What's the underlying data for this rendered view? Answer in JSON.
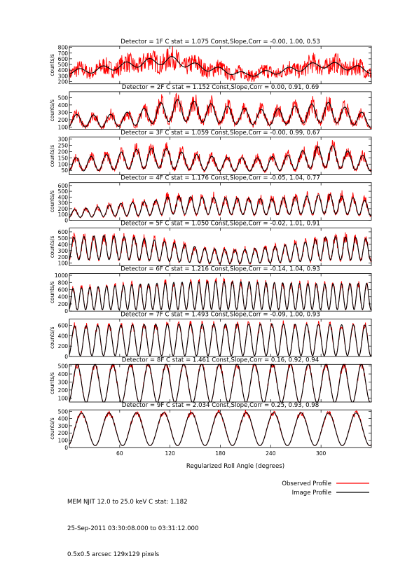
{
  "chart_data": {
    "type": "line",
    "xlabel": "Regularized Roll Angle (degrees)",
    "xlim": [
      0,
      360
    ],
    "x_ticks": [
      60,
      120,
      180,
      240,
      300
    ],
    "ylabel": "counts/s",
    "series_names": [
      "Observed Profile",
      "Image Profile"
    ],
    "series_colors": [
      "#ff0000",
      "#000000"
    ],
    "panels": [
      {
        "title": "Detector = 1F   C stat = 1.075   Const,Slope,Corr = -0.00, 1.00, 0.53",
        "ylim": [
          160,
          820
        ],
        "y_ticks": [
          200,
          300,
          400,
          500,
          600,
          700,
          800
        ],
        "baseline": [
          [
            0,
            370
          ],
          [
            30,
            400
          ],
          [
            60,
            470
          ],
          [
            90,
            530
          ],
          [
            120,
            580
          ],
          [
            150,
            470
          ],
          [
            180,
            400
          ],
          [
            210,
            320
          ],
          [
            240,
            360
          ],
          [
            270,
            420
          ],
          [
            300,
            500
          ],
          [
            330,
            460
          ],
          [
            360,
            390
          ]
        ],
        "cycles": 13,
        "model_amplitude": 0.12,
        "noise": 0.35
      },
      {
        "title": "Detector = 2F   C stat = 1.152   Const,Slope,Corr = 0.00, 0.91, 0.69",
        "ylim": [
          70,
          580
        ],
        "y_ticks": [
          100,
          200,
          300,
          400,
          500
        ],
        "baseline": [
          [
            0,
            190
          ],
          [
            40,
            180
          ],
          [
            80,
            220
          ],
          [
            110,
            300
          ],
          [
            130,
            330
          ],
          [
            160,
            300
          ],
          [
            200,
            250
          ],
          [
            240,
            230
          ],
          [
            280,
            280
          ],
          [
            310,
            300
          ],
          [
            340,
            230
          ],
          [
            360,
            180
          ]
        ],
        "cycles": 18,
        "model_amplitude": 0.45,
        "noise": 0.3
      },
      {
        "title": "Detector = 3F   C stat = 1.059   Const,Slope,Corr = -0.00, 0.99, 0.67",
        "ylim": [
          15,
          315
        ],
        "y_ticks": [
          50,
          100,
          150,
          200,
          250,
          300
        ],
        "baseline": [
          [
            0,
            95
          ],
          [
            40,
            110
          ],
          [
            80,
            140
          ],
          [
            110,
            150
          ],
          [
            140,
            120
          ],
          [
            180,
            100
          ],
          [
            220,
            95
          ],
          [
            260,
            110
          ],
          [
            290,
            150
          ],
          [
            310,
            165
          ],
          [
            340,
            120
          ],
          [
            360,
            100
          ]
        ],
        "cycles": 20,
        "model_amplitude": 0.55,
        "noise": 0.28
      },
      {
        "title": "Detector = 4F   C stat = 1.176   Const,Slope,Corr = -0.05, 1.04, 0.77",
        "ylim": [
          0,
          650
        ],
        "y_ticks": [
          0,
          100,
          200,
          300,
          400,
          500,
          600
        ],
        "baseline": [
          [
            0,
            110
          ],
          [
            30,
            140
          ],
          [
            60,
            180
          ],
          [
            100,
            210
          ],
          [
            120,
            260
          ],
          [
            160,
            250
          ],
          [
            200,
            240
          ],
          [
            240,
            230
          ],
          [
            280,
            260
          ],
          [
            310,
            280
          ],
          [
            340,
            240
          ],
          [
            360,
            200
          ]
        ],
        "cycles": 26,
        "model_amplitude": 0.6,
        "noise": 0.25
      },
      {
        "title": "Detector = 5F   C stat = 1.050   Const,Slope,Corr = -0.02, 1.01, 0.91",
        "ylim": [
          60,
          660
        ],
        "y_ticks": [
          100,
          200,
          300,
          400,
          500,
          600
        ],
        "baseline": [
          [
            0,
            330
          ],
          [
            40,
            350
          ],
          [
            80,
            330
          ],
          [
            120,
            280
          ],
          [
            160,
            220
          ],
          [
            200,
            200
          ],
          [
            240,
            230
          ],
          [
            280,
            280
          ],
          [
            310,
            340
          ],
          [
            340,
            330
          ],
          [
            360,
            310
          ]
        ],
        "cycles": 30,
        "model_amplitude": 0.55,
        "noise": 0.18
      },
      {
        "title": "Detector = 6F   C stat = 1.216   Const,Slope,Corr = -0.14, 1.04, 0.93",
        "ylim": [
          0,
          1050
        ],
        "y_ticks": [
          0,
          200,
          400,
          600,
          800,
          1000
        ],
        "baseline": [
          [
            0,
            330
          ],
          [
            60,
            380
          ],
          [
            120,
            420
          ],
          [
            180,
            440
          ],
          [
            240,
            420
          ],
          [
            300,
            400
          ],
          [
            360,
            410
          ]
        ],
        "cycles": 36,
        "model_amplitude": 0.9,
        "noise": 0.15
      },
      {
        "title": "Detector = 7F   C stat = 1.493   Const,Slope,Corr = -0.09, 1.00, 0.93",
        "ylim": [
          0,
          720
        ],
        "y_ticks": [
          0,
          200,
          400,
          600
        ],
        "baseline": [
          [
            0,
            300
          ],
          [
            120,
            320
          ],
          [
            240,
            320
          ],
          [
            360,
            310
          ]
        ],
        "cycles": 26,
        "model_amplitude": 0.95,
        "noise": 0.12
      },
      {
        "title": "Detector = 8F   C stat = 1.461   Const,Slope,Corr = 0.16, 0.92, 0.94",
        "ylim": [
          50,
          520
        ],
        "y_ticks": [
          100,
          200,
          300,
          400,
          500
        ],
        "baseline": [
          [
            0,
            280
          ],
          [
            180,
            285
          ],
          [
            360,
            280
          ]
        ],
        "cycles": 17,
        "model_amplitude": 0.85,
        "noise": 0.1
      },
      {
        "title": "Detector = 9F   C stat = 2.034   Const,Slope,Corr = 0.25, 0.93, 0.98",
        "ylim": [
          0,
          520
        ],
        "y_ticks": [
          0,
          100,
          200,
          300,
          400,
          500
        ],
        "baseline": [
          [
            0,
            250
          ],
          [
            180,
            255
          ],
          [
            360,
            250
          ]
        ],
        "cycles": 11,
        "model_amplitude": 0.9,
        "noise": 0.08
      }
    ]
  },
  "footer": {
    "line1": "MEM NJIT 12.0 to 25.0 keV C stat: 1.182",
    "line2": "25-Sep-2011 03:30:08.000 to 03:31:12.000",
    "line3": "0.5x0.5 arcsec 129x129 pixels"
  },
  "legend": {
    "observed": "Observed Profile",
    "image": "Image Profile"
  }
}
